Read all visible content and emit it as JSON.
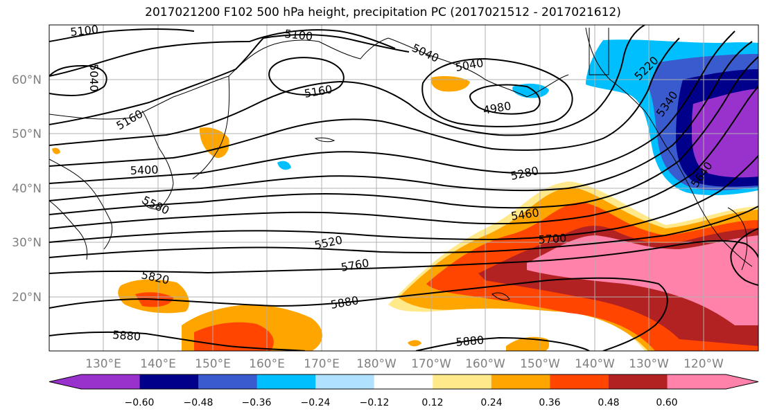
{
  "title": "2017021200 F102 500 hPa height, precipitation PC (2017021512 - 2017021612)",
  "latitude_labels": [
    "60°N",
    "50°N",
    "40°N",
    "30°N",
    "20°N"
  ],
  "longitude_labels": [
    "130°E",
    "140°E",
    "150°E",
    "160°E",
    "170°E",
    "180°W",
    "170°W",
    "160°W",
    "150°W",
    "140°W",
    "130°W",
    "120°W"
  ],
  "contour_labels": [
    "5100",
    "5100",
    "5040",
    "5040",
    "5040",
    "5160",
    "5160",
    "4980",
    "5220",
    "5340",
    "5400",
    "5280",
    "5580",
    "5460",
    "5640",
    "5520",
    "5700",
    "5760",
    "5820",
    "5880",
    "5880",
    "5880"
  ],
  "colorbar": {
    "ticks": [
      "−0.60",
      "−0.48",
      "−0.36",
      "−0.24",
      "−0.12",
      "0.12",
      "0.24",
      "0.36",
      "0.48",
      "0.60"
    ],
    "colors": [
      "#9932cc",
      "#00008b",
      "#3a5bcd",
      "#00bfff",
      "#b0e2ff",
      "#ffffff",
      "#ffe98a",
      "#ffa500",
      "#ff4500",
      "#b22222",
      "#ff82ab"
    ]
  }
}
